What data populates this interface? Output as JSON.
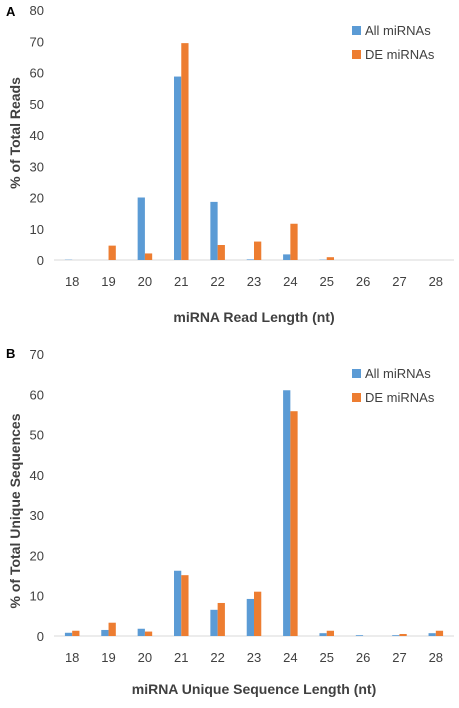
{
  "colors": {
    "all": "#5B9BD5",
    "de": "#ED7D31",
    "axis": "#D9D9D9",
    "text": "#404040"
  },
  "chart_data": [
    {
      "type": "bar",
      "panel": "A",
      "categories": [
        "18",
        "19",
        "20",
        "21",
        "22",
        "23",
        "24",
        "25",
        "26",
        "27",
        "28"
      ],
      "series": [
        {
          "name": "All miRNAs",
          "values": [
            0.1,
            0,
            20,
            58.7,
            18.6,
            0.2,
            1.8,
            0.1,
            0,
            0,
            0
          ]
        },
        {
          "name": "DE miRNAs",
          "values": [
            0,
            4.6,
            2.1,
            69.4,
            4.8,
            5.9,
            11.6,
            0.9,
            0,
            0,
            0
          ]
        }
      ],
      "xlabel": "miRNA Read Length (nt)",
      "ylabel": "% of Total Reads",
      "ylim": [
        0,
        80
      ],
      "yticks": [
        0,
        10,
        20,
        30,
        40,
        50,
        60,
        70,
        80
      ],
      "legend": "top-right"
    },
    {
      "type": "bar",
      "panel": "B",
      "categories": [
        "18",
        "19",
        "20",
        "21",
        "22",
        "23",
        "24",
        "25",
        "26",
        "27",
        "28"
      ],
      "series": [
        {
          "name": "All miRNAs",
          "values": [
            0.8,
            1.5,
            1.8,
            16.2,
            6.5,
            9.2,
            61,
            0.7,
            0.2,
            0.2,
            0.7
          ]
        },
        {
          "name": "DE miRNAs",
          "values": [
            1.3,
            3.3,
            1.1,
            15.1,
            8.2,
            11,
            55.8,
            1.3,
            0,
            0.5,
            1.3
          ]
        }
      ],
      "xlabel": "miRNA Unique Sequence Length (nt)",
      "ylabel": "% of Total Unique Sequences",
      "ylim": [
        0,
        70
      ],
      "yticks": [
        0,
        10,
        20,
        30,
        40,
        50,
        60,
        70
      ],
      "legend": "top-right"
    }
  ]
}
